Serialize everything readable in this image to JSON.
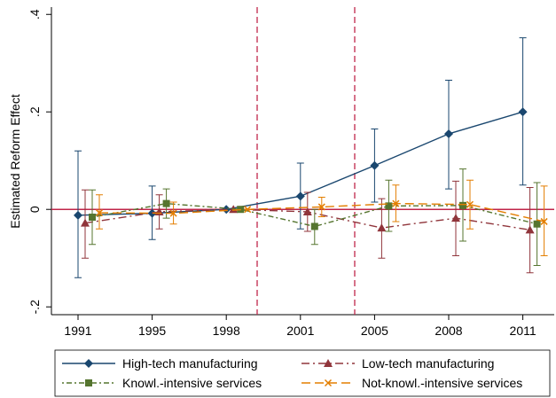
{
  "chart_data": {
    "type": "line",
    "y_label": "Estimated Reform Effect",
    "categories": [
      "1991",
      "1995",
      "1998",
      "2001",
      "2005",
      "2008",
      "2011"
    ],
    "ylim": [
      -0.216,
      0.415
    ],
    "yticks": [
      {
        "value": -0.2,
        "label": "-.2"
      },
      0,
      {
        "value": 0.2,
        "label": ".2"
      },
      {
        "value": 0.4,
        "label": ".4"
      }
    ],
    "hline": 0,
    "series": [
      {
        "name": "High-tech manufacturing",
        "color": "#1a476f",
        "marker": "diamond",
        "line_style": "solid",
        "values": [
          -0.012,
          -0.008,
          0,
          0.027,
          0.09,
          0.155,
          0.2
        ],
        "lower": [
          -0.14,
          -0.062,
          0,
          -0.04,
          0.015,
          0.042,
          0.05
        ],
        "upper": [
          0.12,
          0.048,
          0,
          0.095,
          0.165,
          0.265,
          0.352
        ]
      },
      {
        "name": "Low-tech manufacturing",
        "color": "#90353b",
        "marker": "triangle",
        "line_style": "dashdot",
        "values": [
          -0.028,
          -0.005,
          0,
          -0.005,
          -0.038,
          -0.018,
          -0.042
        ],
        "lower": [
          -0.1,
          -0.04,
          0,
          -0.045,
          -0.1,
          -0.095,
          -0.13
        ],
        "upper": [
          0.04,
          0.03,
          0,
          0.035,
          0.022,
          0.058,
          0.045
        ]
      },
      {
        "name": "Knowl.-intensive services",
        "color": "#55752f",
        "marker": "square",
        "line_style": "dotdash",
        "values": [
          -0.016,
          0.012,
          0,
          -0.035,
          0.007,
          0.008,
          -0.03
        ],
        "lower": [
          -0.072,
          -0.018,
          0,
          -0.072,
          -0.045,
          -0.065,
          -0.115
        ],
        "upper": [
          0.04,
          0.042,
          0,
          0.0,
          0.06,
          0.083,
          0.055
        ]
      },
      {
        "name": "Not-knowl.-intensive services",
        "color": "#e37e00",
        "marker": "x",
        "line_style": "longdash",
        "values": [
          -0.007,
          -0.008,
          0,
          0.005,
          0.012,
          0.01,
          -0.025
        ],
        "lower": [
          -0.04,
          -0.03,
          0,
          -0.015,
          -0.025,
          -0.04,
          -0.095
        ],
        "upper": [
          0.03,
          0.015,
          0,
          0.025,
          0.05,
          0.06,
          0.048
        ]
      }
    ]
  }
}
